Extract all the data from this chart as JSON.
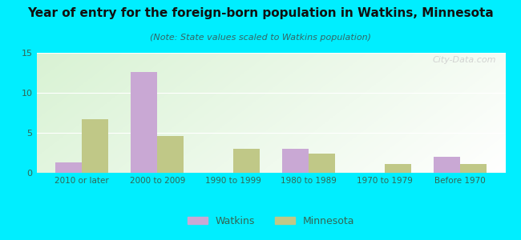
{
  "title": "Year of entry for the foreign-born population in Watkins, Minnesota",
  "subtitle": "(Note: State values scaled to Watkins population)",
  "categories": [
    "2010 or later",
    "2000 to 2009",
    "1990 to 1999",
    "1980 to 1989",
    "1970 to 1979",
    "Before 1970"
  ],
  "watkins": [
    1.3,
    12.6,
    0,
    3.0,
    0,
    2.0
  ],
  "minnesota": [
    6.7,
    4.6,
    3.0,
    2.4,
    1.1,
    1.1
  ],
  "watkins_color": "#c9a8d4",
  "minnesota_color": "#c0c887",
  "background_outer": "#00eeff",
  "ylim": [
    0,
    15
  ],
  "yticks": [
    0,
    5,
    10,
    15
  ],
  "bar_width": 0.35,
  "legend_labels": [
    "Watkins",
    "Minnesota"
  ],
  "watermark": "City-Data.com",
  "tick_color": "#336655",
  "title_color": "#111111",
  "subtitle_color": "#336666"
}
